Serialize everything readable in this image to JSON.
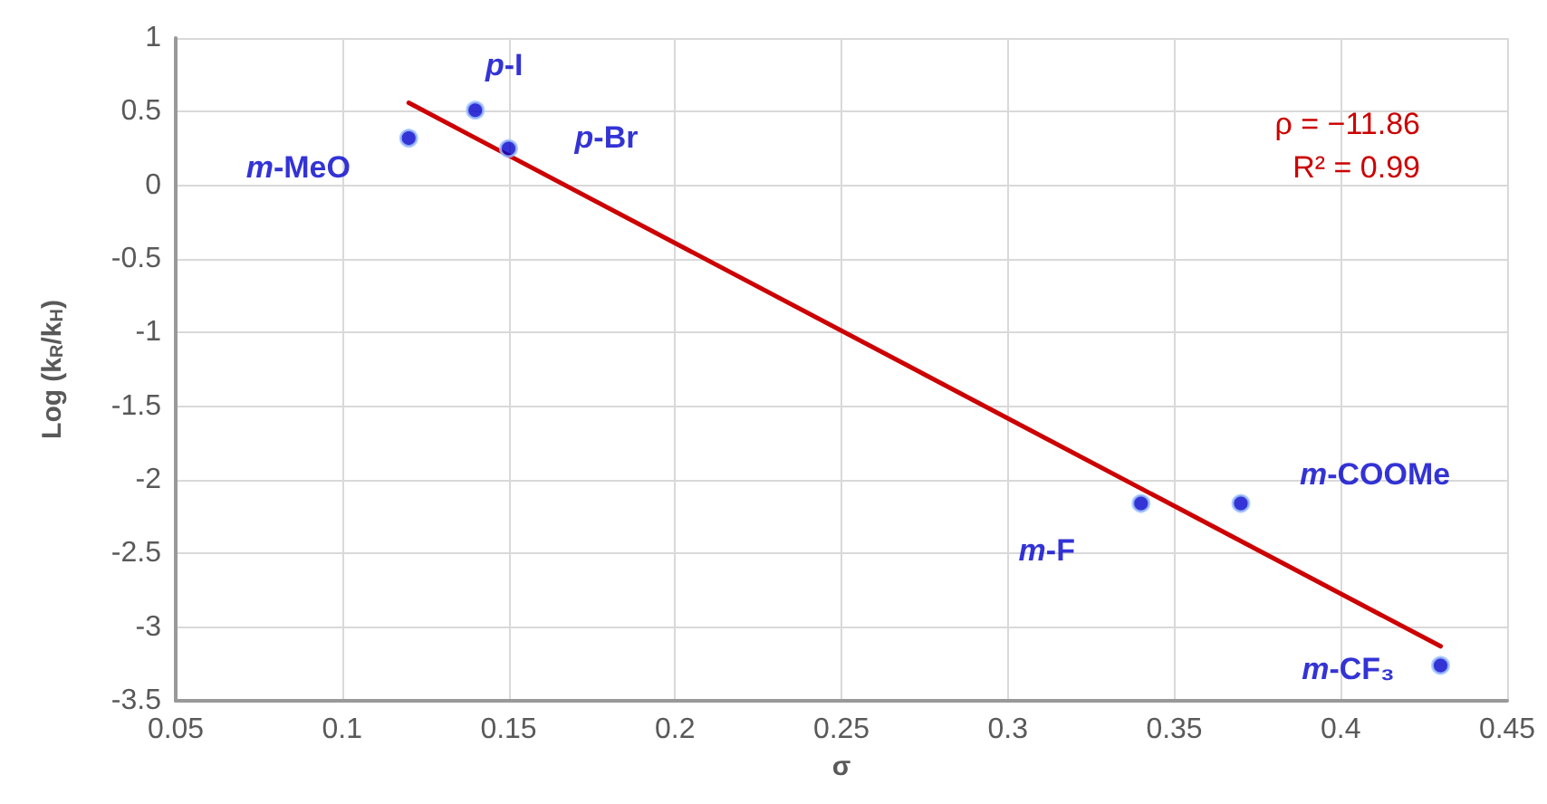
{
  "chart_data": {
    "type": "scatter",
    "xlabel": "σ",
    "ylabel": "Log (k$_{R}$/k$_{H}$)",
    "series": [
      {
        "color": "#0000cc",
        "x": [
          0.12,
          0.14,
          0.15,
          0.34,
          0.37,
          0.43
        ],
        "values": [
          0.32,
          0.51,
          0.25,
          -2.16,
          -2.16,
          -3.26
        ],
        "marker": "circle"
      },
      {
        "type": "line",
        "color": "#cc0000",
        "x": [
          0.12,
          0.43
        ],
        "values": [
          0.56,
          -3.13
        ],
        "marker": "none"
      }
    ],
    "annotations": [
      {
        "text": "m-MeO",
        "x": 0.12,
        "y": 0.32
      },
      {
        "text": "p-I",
        "x": 0.14,
        "y": 0.51
      },
      {
        "text": "p-Br",
        "x": 0.15,
        "y": 0.25
      },
      {
        "text": "m-F",
        "x": 0.34,
        "y": -2.16
      },
      {
        "text": "m-COOMe",
        "x": 0.37,
        "y": -2.16
      },
      {
        "text": "m-CF₃",
        "x": 0.43,
        "y": -3.26
      },
      "ρ = −11.86",
      "R² = 0.99"
    ],
    "xlim": [
      0.05,
      0.45
    ],
    "xticks": [
      0.05,
      0.1,
      0.15,
      0.2,
      0.25,
      0.3,
      0.35,
      0.4,
      0.45
    ],
    "ylim": [
      -3.5,
      1
    ],
    "yticks": [
      -3.5,
      -3,
      -2.5,
      -2,
      -1.5,
      -1,
      -0.5,
      0,
      0.5,
      1
    ],
    "grid": true
  }
}
